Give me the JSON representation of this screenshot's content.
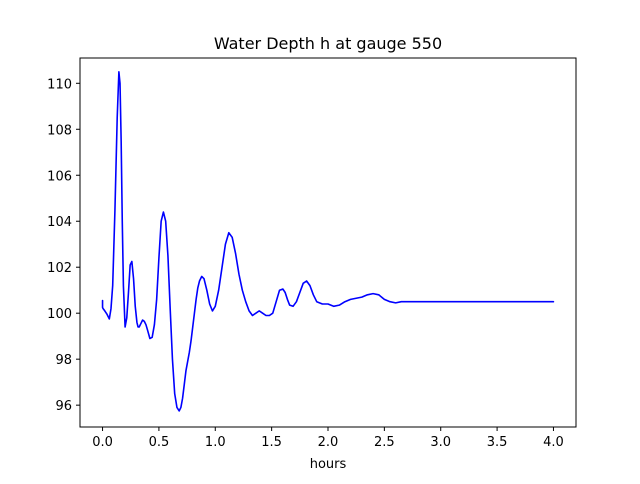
{
  "chart_data": {
    "type": "line",
    "title": "Water Depth h at gauge 550",
    "xlabel": "hours",
    "ylabel": "",
    "xlim": [
      -0.2,
      4.2
    ],
    "ylim": [
      95.05,
      111.1
    ],
    "xticks": [
      0.0,
      0.5,
      1.0,
      1.5,
      2.0,
      2.5,
      3.0,
      3.5,
      4.0
    ],
    "xtick_labels": [
      "0.0",
      "0.5",
      "1.0",
      "1.5",
      "2.0",
      "2.5",
      "3.0",
      "3.5",
      "4.0"
    ],
    "yticks": [
      96,
      98,
      100,
      102,
      104,
      106,
      108,
      110
    ],
    "ytick_labels": [
      "96",
      "98",
      "100",
      "102",
      "104",
      "106",
      "108",
      "110"
    ],
    "grid": false,
    "line_color": "#0000ff",
    "series": [
      {
        "x": [
          0.0,
          0.0,
          0.005,
          0.02,
          0.04,
          0.06,
          0.075,
          0.09,
          0.11,
          0.13,
          0.145,
          0.155,
          0.165,
          0.175,
          0.185,
          0.2,
          0.215,
          0.23,
          0.245,
          0.26,
          0.275,
          0.29,
          0.305,
          0.315,
          0.325,
          0.34,
          0.355,
          0.37,
          0.385,
          0.4,
          0.42,
          0.44,
          0.46,
          0.48,
          0.5,
          0.52,
          0.54,
          0.56,
          0.58,
          0.6,
          0.62,
          0.64,
          0.66,
          0.68,
          0.695,
          0.71,
          0.725,
          0.74,
          0.755,
          0.77,
          0.785,
          0.8,
          0.815,
          0.83,
          0.845,
          0.86,
          0.88,
          0.9,
          0.925,
          0.95,
          0.975,
          1.0,
          1.03,
          1.06,
          1.09,
          1.12,
          1.15,
          1.18,
          1.21,
          1.24,
          1.27,
          1.3,
          1.33,
          1.36,
          1.39,
          1.42,
          1.45,
          1.48,
          1.51,
          1.54,
          1.57,
          1.6,
          1.62,
          1.64,
          1.66,
          1.69,
          1.72,
          1.75,
          1.78,
          1.81,
          1.84,
          1.87,
          1.9,
          1.95,
          2.0,
          2.05,
          2.1,
          2.15,
          2.2,
          2.25,
          2.3,
          2.35,
          2.4,
          2.45,
          2.5,
          2.55,
          2.6,
          2.65,
          2.7,
          2.75,
          2.8,
          2.85,
          2.9,
          2.95,
          3.0,
          3.05,
          3.1,
          3.15,
          3.2,
          3.25,
          3.3,
          3.35,
          3.4,
          3.45,
          3.5,
          3.55,
          3.6,
          3.65,
          3.7,
          3.75,
          3.8,
          3.85,
          3.9,
          3.95,
          4.0
        ],
        "values": [
          100.55,
          100.25,
          100.2,
          100.1,
          99.95,
          99.75,
          100.2,
          101.2,
          104.5,
          108.5,
          110.5,
          110.0,
          107.5,
          104.0,
          101.2,
          99.4,
          99.8,
          100.9,
          102.1,
          102.25,
          101.5,
          100.3,
          99.6,
          99.4,
          99.4,
          99.55,
          99.7,
          99.65,
          99.5,
          99.25,
          98.9,
          98.95,
          99.5,
          100.6,
          102.4,
          104.0,
          104.4,
          104.0,
          102.5,
          100.2,
          98.0,
          96.5,
          95.9,
          95.75,
          95.9,
          96.3,
          96.9,
          97.5,
          97.9,
          98.3,
          98.8,
          99.4,
          100.0,
          100.6,
          101.1,
          101.4,
          101.6,
          101.5,
          101.0,
          100.4,
          100.1,
          100.3,
          101.0,
          102.0,
          103.0,
          103.5,
          103.3,
          102.6,
          101.7,
          101.0,
          100.5,
          100.1,
          99.9,
          100.0,
          100.1,
          100.0,
          99.9,
          99.9,
          100.0,
          100.5,
          101.0,
          101.05,
          100.9,
          100.6,
          100.35,
          100.3,
          100.5,
          100.9,
          101.3,
          101.4,
          101.2,
          100.8,
          100.5,
          100.4,
          100.4,
          100.3,
          100.35,
          100.5,
          100.6,
          100.65,
          100.7,
          100.8,
          100.85,
          100.8,
          100.6,
          100.5,
          100.45,
          100.5,
          100.5,
          100.5,
          100.5,
          100.5,
          100.5,
          100.5,
          100.5,
          100.5,
          100.5,
          100.5,
          100.5,
          100.5,
          100.5,
          100.5,
          100.5,
          100.5,
          100.5,
          100.5,
          100.5,
          100.5,
          100.5,
          100.5,
          100.5,
          100.5,
          100.5,
          100.5,
          100.5
        ]
      }
    ]
  }
}
